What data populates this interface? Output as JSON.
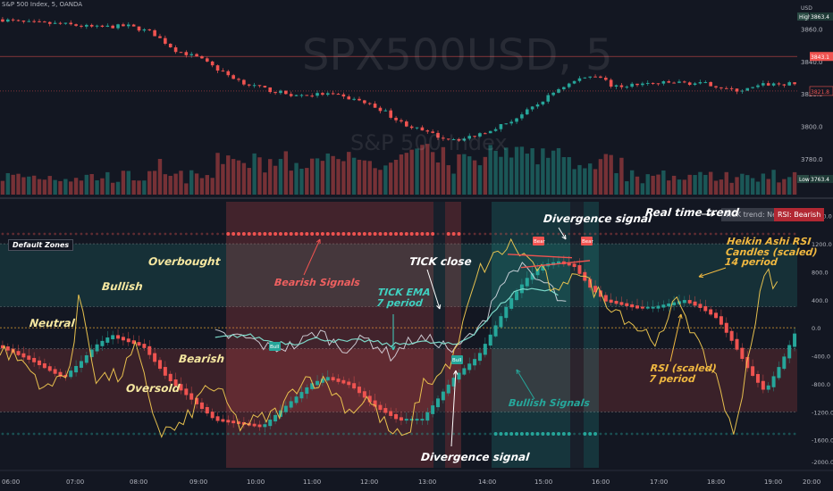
{
  "header": {
    "symbol_title": "S&P 500 Index, 5, OANDA"
  },
  "watermark": {
    "symbol": "SPX500USD, 5",
    "name": "S&P 500 Index"
  },
  "price_axis": {
    "currency": "USD",
    "high_label": "High",
    "low_label": "Low",
    "ticks": [
      "3860.0",
      "3840.0",
      "3820.0",
      "3800.0",
      "3780.0"
    ],
    "current": "3843.1",
    "last": "3821.8",
    "high": "3863.4",
    "low": "3763.4"
  },
  "osc_axis": {
    "ticks": [
      "1600.0",
      "1200.0",
      "800.0",
      "400.0",
      "0.0",
      "-400.0",
      "-800.0",
      "-1200.0",
      "-1600.0",
      "-2000.0"
    ]
  },
  "time_axis": {
    "ticks": [
      "06:00",
      "07:00",
      "08:00",
      "09:00",
      "10:00",
      "11:00",
      "12:00",
      "13:00",
      "14:00",
      "15:00",
      "16:00",
      "17:00",
      "18:00",
      "19:00",
      "20:00"
    ]
  },
  "colors": {
    "bull": "#26a69a",
    "bear": "#ef5350",
    "yellow": "#f0c850",
    "tick_close": "#e0e3eb",
    "ema": "#80e0d0",
    "background": "#131722"
  },
  "trend_box": {
    "tick": "TICK trend: Neutral",
    "rsi": "RSI: Bearish"
  },
  "zones_label": "Default Zones",
  "signal_tags": {
    "bull": "Bull",
    "bear": "Bear"
  },
  "annotations": {
    "overbought": "Overbought",
    "bullish": "Bullish",
    "neutral": "Neutral",
    "bearish": "Bearish",
    "oversold": "Oversold",
    "bearish_signals": "Bearish Signals",
    "tick_close": "TICK close",
    "tick_ema": "TICK EMA\n7 period",
    "divergence_top": "Divergence signal",
    "divergence_bottom": "Divergence signal",
    "bullish_signals": "Bullish Signals",
    "real_time_trend": "Real time trend",
    "heikin_ashi": "Heikin Ashi RSI\nCandles (scaled)\n14 period",
    "rsi_scaled": "RSI (scaled)\n7 period"
  },
  "chart_data": [
    {
      "type": "candlestick",
      "title": "S&P 500 Index, 5, OANDA",
      "x_range": [
        "05:30",
        "20:50"
      ],
      "ylim": [
        3763.4,
        3868
      ],
      "price_path": [
        [
          0,
          3866
        ],
        [
          0.03,
          3864
        ],
        [
          0.08,
          3863
        ],
        [
          0.12,
          3861
        ],
        [
          0.16,
          3862
        ],
        [
          0.19,
          3858
        ],
        [
          0.22,
          3847
        ],
        [
          0.25,
          3842
        ],
        [
          0.28,
          3833
        ],
        [
          0.31,
          3826
        ],
        [
          0.34,
          3822
        ],
        [
          0.37,
          3819
        ],
        [
          0.41,
          3820
        ],
        [
          0.45,
          3816
        ],
        [
          0.48,
          3810
        ],
        [
          0.5,
          3803
        ],
        [
          0.53,
          3797
        ],
        [
          0.555,
          3793
        ],
        [
          0.58,
          3792
        ],
        [
          0.61,
          3797
        ],
        [
          0.64,
          3803
        ],
        [
          0.67,
          3812
        ],
        [
          0.7,
          3823
        ],
        [
          0.73,
          3830
        ],
        [
          0.75,
          3832
        ],
        [
          0.77,
          3824
        ],
        [
          0.8,
          3826
        ],
        [
          0.85,
          3827
        ],
        [
          0.89,
          3826
        ],
        [
          0.92,
          3822
        ],
        [
          0.94,
          3823
        ],
        [
          0.96,
          3826
        ]
      ]
    },
    {
      "type": "line",
      "ylim": [
        -2000,
        1800
      ],
      "series": [
        {
          "name": "TICK close",
          "path": [
            [
              0.27,
              -100
            ],
            [
              0.31,
              -150
            ],
            [
              0.34,
              -300
            ],
            [
              0.37,
              -250
            ],
            [
              0.4,
              -50
            ],
            [
              0.43,
              -300
            ],
            [
              0.46,
              -150
            ],
            [
              0.49,
              -400
            ],
            [
              0.52,
              -150
            ],
            [
              0.55,
              -200
            ],
            [
              0.57,
              -350
            ],
            [
              0.59,
              -100
            ],
            [
              0.6,
              -50
            ],
            [
              0.61,
              150
            ],
            [
              0.62,
              500
            ],
            [
              0.65,
              900
            ],
            [
              0.67,
              700
            ],
            [
              0.69,
              600
            ],
            [
              0.7,
              400
            ],
            [
              0.71,
              300
            ]
          ]
        },
        {
          "name": "TICK EMA 7 period",
          "path": [
            [
              0.27,
              -150
            ],
            [
              0.31,
              -100
            ],
            [
              0.34,
              -200
            ],
            [
              0.37,
              -220
            ],
            [
              0.4,
              -150
            ],
            [
              0.43,
              -200
            ],
            [
              0.46,
              -180
            ],
            [
              0.49,
              -250
            ],
            [
              0.52,
              -200
            ],
            [
              0.55,
              -220
            ],
            [
              0.57,
              -250
            ],
            [
              0.59,
              -120
            ],
            [
              0.61,
              100
            ],
            [
              0.63,
              350
            ],
            [
              0.65,
              550
            ],
            [
              0.67,
              550
            ],
            [
              0.69,
              550
            ],
            [
              0.7,
              450
            ]
          ]
        },
        {
          "name": "RSI (scaled) 7 period",
          "path": [
            [
              0,
              -300
            ],
            [
              0.03,
              -500
            ],
            [
              0.06,
              -900
            ],
            [
              0.09,
              -500
            ],
            [
              0.1,
              500
            ],
            [
              0.12,
              -700
            ],
            [
              0.15,
              -700
            ],
            [
              0.17,
              -300
            ],
            [
              0.2,
              -1500
            ],
            [
              0.23,
              -1400
            ],
            [
              0.26,
              -800
            ],
            [
              0.28,
              -1000
            ],
            [
              0.3,
              -1400
            ],
            [
              0.33,
              -1300
            ],
            [
              0.35,
              -1200
            ],
            [
              0.38,
              -700
            ],
            [
              0.41,
              -800
            ],
            [
              0.44,
              -1200
            ],
            [
              0.46,
              -1000
            ],
            [
              0.49,
              -1500
            ],
            [
              0.51,
              -1600
            ],
            [
              0.53,
              -800
            ],
            [
              0.55,
              -700
            ],
            [
              0.57,
              -400
            ],
            [
              0.6,
              800
            ],
            [
              0.62,
              1000
            ],
            [
              0.64,
              1200
            ],
            [
              0.66,
              1000
            ],
            [
              0.68,
              800
            ],
            [
              0.7,
              400
            ],
            [
              0.72,
              900
            ],
            [
              0.74,
              600
            ],
            [
              0.77,
              300
            ],
            [
              0.8,
              0
            ],
            [
              0.83,
              -200
            ],
            [
              0.85,
              500
            ],
            [
              0.88,
              -400
            ],
            [
              0.9,
              -700
            ],
            [
              0.92,
              -1600
            ],
            [
              0.94,
              -300
            ],
            [
              0.96,
              800
            ],
            [
              0.975,
              600
            ]
          ]
        }
      ]
    }
  ]
}
